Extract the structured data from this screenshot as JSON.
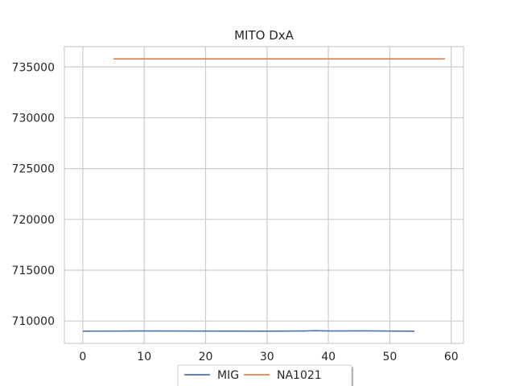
{
  "chart_data": {
    "type": "line",
    "title": "MITO DxA",
    "xlabel": "",
    "ylabel": "",
    "xlim": [
      -3,
      62
    ],
    "ylim": [
      707800,
      737000
    ],
    "xticks": [
      0,
      10,
      20,
      30,
      40,
      50,
      60
    ],
    "yticks": [
      710000,
      715000,
      720000,
      725000,
      730000,
      735000
    ],
    "grid": true,
    "legend_position": "bottom-center",
    "series": [
      {
        "name": "MIG",
        "color": "#4c72b0",
        "points": [
          [
            0,
            709000
          ],
          [
            10,
            709020
          ],
          [
            20,
            709010
          ],
          [
            30,
            709000
          ],
          [
            36,
            709020
          ],
          [
            38,
            709050
          ],
          [
            40,
            709020
          ],
          [
            46,
            709030
          ],
          [
            50,
            709010
          ],
          [
            54,
            709000
          ]
        ]
      },
      {
        "name": "NA1021",
        "color": "#dd8452",
        "points": [
          [
            5,
            735800
          ],
          [
            20,
            735800
          ],
          [
            40,
            735800
          ],
          [
            59,
            735800
          ]
        ]
      }
    ]
  }
}
